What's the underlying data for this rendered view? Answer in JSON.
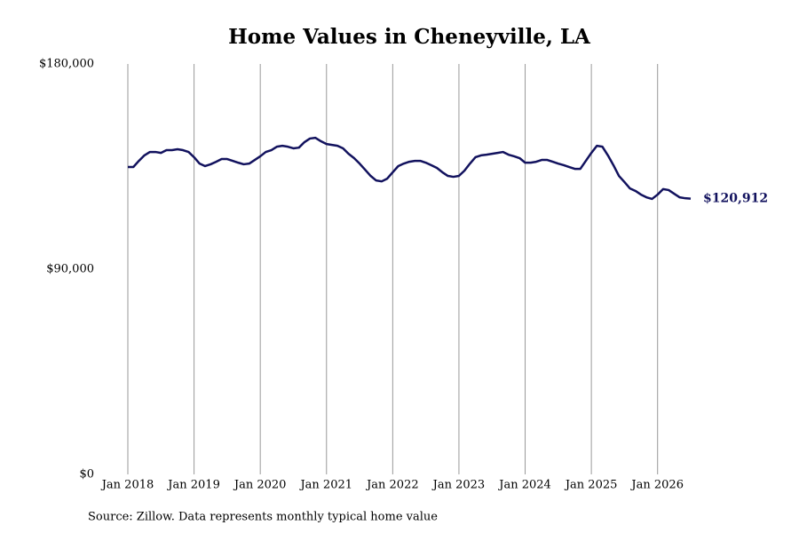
{
  "chart_data": {
    "type": "line",
    "title": "Home Values in Cheneyville, LA",
    "source": "Source: Zillow. Data represents monthly typical home value",
    "x": [
      "2018-01",
      "2018-02",
      "2018-03",
      "2018-04",
      "2018-05",
      "2018-06",
      "2018-07",
      "2018-08",
      "2018-09",
      "2018-10",
      "2018-11",
      "2018-12",
      "2019-01",
      "2019-02",
      "2019-03",
      "2019-04",
      "2019-05",
      "2019-06",
      "2019-07",
      "2019-08",
      "2019-09",
      "2019-10",
      "2019-11",
      "2019-12",
      "2020-01",
      "2020-02",
      "2020-03",
      "2020-04",
      "2020-05",
      "2020-06",
      "2020-07",
      "2020-08",
      "2020-09",
      "2020-10",
      "2020-11",
      "2020-12",
      "2021-01",
      "2021-02",
      "2021-03",
      "2021-04",
      "2021-05",
      "2021-06",
      "2021-07",
      "2021-08",
      "2021-09",
      "2021-10",
      "2021-11",
      "2021-12",
      "2022-01",
      "2022-02",
      "2022-03",
      "2022-04",
      "2022-05",
      "2022-06",
      "2022-07",
      "2022-08",
      "2022-09",
      "2022-10",
      "2022-11",
      "2022-12",
      "2023-01",
      "2023-02",
      "2023-03",
      "2023-04",
      "2023-05",
      "2023-06",
      "2023-07",
      "2023-08",
      "2023-09",
      "2023-10",
      "2023-11",
      "2023-12",
      "2024-01",
      "2024-02",
      "2024-03",
      "2024-04",
      "2024-05",
      "2024-06",
      "2024-07",
      "2024-08",
      "2024-09",
      "2024-10",
      "2024-11",
      "2024-12",
      "2025-01",
      "2025-02",
      "2025-03",
      "2025-04",
      "2025-05",
      "2025-06",
      "2025-07",
      "2025-08",
      "2025-09",
      "2025-10",
      "2025-11",
      "2025-12",
      "2026-01",
      "2026-02",
      "2026-03",
      "2026-04",
      "2026-05",
      "2026-06",
      "2026-07"
    ],
    "series": [
      {
        "color": "#12125e",
        "values": [
          134800,
          134800,
          137500,
          139900,
          141400,
          141400,
          141000,
          142200,
          142200,
          142600,
          142200,
          141400,
          139100,
          136300,
          135200,
          136000,
          137100,
          138300,
          138300,
          137500,
          136700,
          136000,
          136300,
          137900,
          139500,
          141400,
          142200,
          143700,
          144100,
          143700,
          143000,
          143300,
          145700,
          147300,
          147600,
          146100,
          144900,
          144500,
          144100,
          143000,
          140600,
          138700,
          136300,
          133600,
          130900,
          128900,
          128500,
          129700,
          132500,
          135200,
          136300,
          137100,
          137500,
          137500,
          136700,
          135600,
          134400,
          132500,
          130900,
          130500,
          130900,
          133200,
          136300,
          139100,
          139900,
          140200,
          140600,
          141000,
          141400,
          140200,
          139500,
          138700,
          136700,
          136700,
          137100,
          137900,
          137900,
          137100,
          136300,
          135600,
          134800,
          134000,
          134000,
          137500,
          141000,
          144100,
          143700,
          139900,
          135600,
          130900,
          128200,
          125400,
          124300,
          122700,
          121500,
          120800,
          122700,
          125100,
          124700,
          123100,
          121500,
          121100,
          120912
        ],
        "value_labels": [
          null,
          null,
          null,
          null,
          null,
          null,
          null,
          null,
          null,
          null,
          null,
          null,
          null,
          null,
          null,
          null,
          null,
          null,
          null,
          null,
          null,
          null,
          null,
          null,
          null,
          null,
          null,
          null,
          null,
          null,
          null,
          null,
          null,
          null,
          null,
          null,
          null,
          null,
          null,
          null,
          null,
          null,
          null,
          null,
          null,
          null,
          null,
          null,
          null,
          null,
          null,
          null,
          null,
          null,
          null,
          null,
          null,
          null,
          null,
          null,
          null,
          null,
          null,
          null,
          null,
          null,
          null,
          null,
          null,
          null,
          null,
          null,
          null,
          null,
          null,
          null,
          null,
          null,
          null,
          null,
          null,
          null,
          null,
          null,
          null,
          null,
          null,
          null,
          null,
          null,
          null,
          null,
          null,
          null,
          null,
          null,
          null,
          null,
          null,
          null,
          null,
          null,
          "$120,912"
        ]
      }
    ],
    "xlim": [
      "2018-01",
      "2026-07"
    ],
    "xticks": [
      {
        "value": "2018-01",
        "label": "Jan 2018"
      },
      {
        "value": "2019-01",
        "label": "Jan 2019"
      },
      {
        "value": "2020-01",
        "label": "Jan 2020"
      },
      {
        "value": "2021-01",
        "label": "Jan 2021"
      },
      {
        "value": "2022-01",
        "label": "Jan 2022"
      },
      {
        "value": "2023-01",
        "label": "Jan 2023"
      },
      {
        "value": "2024-01",
        "label": "Jan 2024"
      },
      {
        "value": "2025-01",
        "label": "Jan 2025"
      },
      {
        "value": "2026-01",
        "label": "Jan 2026"
      }
    ],
    "ylim": [
      0,
      180000
    ],
    "yticks": [
      {
        "value": 0,
        "label": "$0"
      },
      {
        "value": 90000,
        "label": "$90,000"
      },
      {
        "value": 180000,
        "label": "$180,000"
      }
    ],
    "grid": "x"
  }
}
